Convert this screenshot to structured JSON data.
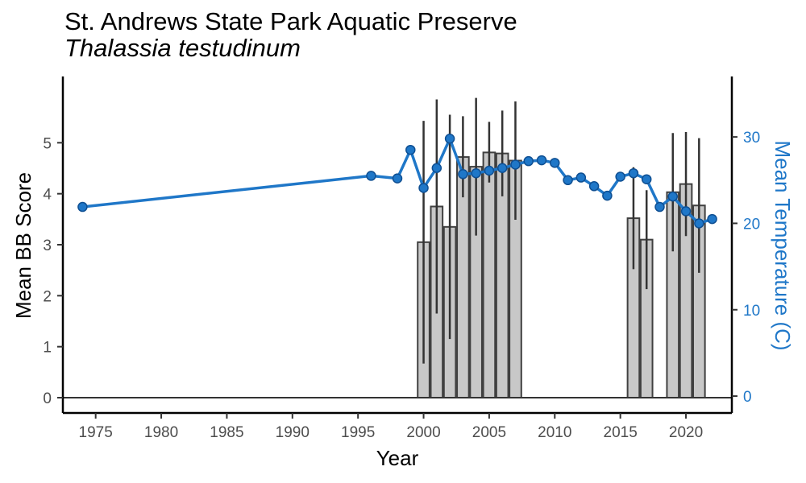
{
  "chart_data": {
    "type": "bar+line",
    "title": "St. Andrews State Park Aquatic Preserve",
    "subtitle": "Thalassia testudinum",
    "xlabel": "Year",
    "ylabel": "Mean BB Score",
    "ylabel_right": "Mean Temperature (C)",
    "xlim": [
      1972.5,
      2023.5
    ],
    "ylim": [
      -0.3,
      6.3
    ],
    "ylim_right": [
      -1.95,
      37.0
    ],
    "x_ticks": [
      1975,
      1980,
      1985,
      1990,
      1995,
      2000,
      2005,
      2010,
      2015,
      2020
    ],
    "y_ticks": [
      0,
      1,
      2,
      3,
      4,
      5
    ],
    "y_ticks_right": [
      0,
      10,
      20,
      30
    ],
    "colors": {
      "bar_fill": "#c8c8c8",
      "bar_stroke": "#404040",
      "error": "#333333",
      "line": "#1f77c8",
      "right_axis": "#1f77c8"
    },
    "bars": [
      {
        "year": 2000,
        "value": 3.05,
        "err_low": 0.67,
        "err_high": 5.43
      },
      {
        "year": 2001,
        "value": 3.75,
        "err_low": 1.65,
        "err_high": 5.85
      },
      {
        "year": 2002,
        "value": 3.35,
        "err_low": 1.15,
        "err_high": 5.55
      },
      {
        "year": 2003,
        "value": 4.72,
        "err_low": 3.93,
        "err_high": 5.52
      },
      {
        "year": 2004,
        "value": 4.53,
        "err_low": 3.18,
        "err_high": 5.88
      },
      {
        "year": 2005,
        "value": 4.81,
        "err_low": 4.22,
        "err_high": 5.41
      },
      {
        "year": 2006,
        "value": 4.79,
        "err_low": 3.95,
        "err_high": 5.63
      },
      {
        "year": 2007,
        "value": 4.65,
        "err_low": 3.49,
        "err_high": 5.81
      },
      {
        "year": 2016,
        "value": 3.52,
        "err_low": 2.52,
        "err_high": 4.52
      },
      {
        "year": 2017,
        "value": 3.1,
        "err_low": 2.13,
        "err_high": 4.07
      },
      {
        "year": 2019,
        "value": 4.03,
        "err_low": 2.87,
        "err_high": 5.19
      },
      {
        "year": 2020,
        "value": 4.19,
        "err_low": 3.17,
        "err_high": 5.21
      },
      {
        "year": 2021,
        "value": 3.77,
        "err_low": 2.45,
        "err_high": 5.09
      }
    ],
    "temperature": [
      {
        "year": 1974,
        "value": 21.9
      },
      {
        "year": 1996,
        "value": 25.5
      },
      {
        "year": 1998,
        "value": 25.2
      },
      {
        "year": 1999,
        "value": 28.5
      },
      {
        "year": 2000,
        "value": 24.1
      },
      {
        "year": 2001,
        "value": 26.4
      },
      {
        "year": 2002,
        "value": 29.8
      },
      {
        "year": 2003,
        "value": 25.7
      },
      {
        "year": 2004,
        "value": 25.8
      },
      {
        "year": 2005,
        "value": 26.1
      },
      {
        "year": 2006,
        "value": 26.4
      },
      {
        "year": 2007,
        "value": 26.8
      },
      {
        "year": 2008,
        "value": 27.2
      },
      {
        "year": 2009,
        "value": 27.3
      },
      {
        "year": 2010,
        "value": 27.0
      },
      {
        "year": 2011,
        "value": 25.0
      },
      {
        "year": 2012,
        "value": 25.3
      },
      {
        "year": 2013,
        "value": 24.3
      },
      {
        "year": 2014,
        "value": 23.2
      },
      {
        "year": 2015,
        "value": 25.4
      },
      {
        "year": 2016,
        "value": 25.8
      },
      {
        "year": 2017,
        "value": 25.1
      },
      {
        "year": 2018,
        "value": 21.9
      },
      {
        "year": 2019,
        "value": 23.1
      },
      {
        "year": 2020,
        "value": 21.4
      },
      {
        "year": 2021,
        "value": 20.0
      },
      {
        "year": 2022,
        "value": 20.5
      }
    ]
  }
}
